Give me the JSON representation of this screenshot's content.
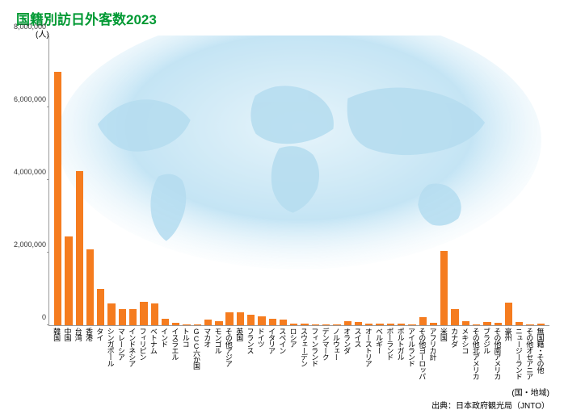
{
  "title": {
    "text": "国籍別訪日外客数2023",
    "color": "#009933",
    "fontsize": 17
  },
  "chart": {
    "type": "bar",
    "ylabel": "(人)",
    "xaxis_unit": "(国・地域)",
    "source": "出典：日本政府観光局（JNTO）",
    "bar_color": "#f57c1f",
    "axis_color": "#999999",
    "text_color": "#333333",
    "background_color": "#ffffff",
    "world_fill": "#7ec5e8",
    "ylim": [
      0,
      8000000
    ],
    "ytick_step": 2000000,
    "yticks": [
      {
        "value": 0,
        "label": "0"
      },
      {
        "value": 2000000,
        "label": "2,000,000"
      },
      {
        "value": 4000000,
        "label": "4,000,000"
      },
      {
        "value": 6000000,
        "label": "6,000,000"
      },
      {
        "value": 8000000,
        "label": "8,000,000"
      }
    ],
    "xlabel_fontsize": 9,
    "ytick_fontsize": 9,
    "bar_width": 0.7,
    "categories": [
      "韓国",
      "中国",
      "台湾",
      "香港",
      "タイ",
      "シンガポール",
      "マレーシア",
      "インドネシア",
      "フィリピン",
      "ベトナム",
      "インド",
      "イスラエル",
      "トルコ",
      "GCC六か国",
      "マカオ",
      "モンゴル",
      "その他アジア",
      "英国",
      "フランス",
      "ドイツ",
      "イタリア",
      "スペイン",
      "ロシア",
      "スウェーデン",
      "フィンランド",
      "デンマーク",
      "ノルウェー",
      "オランダ",
      "スイス",
      "オーストリア",
      "ベルギー",
      "ポーランド",
      "ポルトガル",
      "アイルランド",
      "その他ヨーロッパ",
      "アフリカ計",
      "米国",
      "カナダ",
      "メキシコ",
      "その他北アメリカ",
      "ブラジル",
      "その他南アメリカ",
      "豪州",
      "ニュージーランド",
      "その他オセアニア",
      "無国籍・その他"
    ],
    "values": [
      7000000,
      2450000,
      4250000,
      2100000,
      1000000,
      600000,
      450000,
      450000,
      650000,
      600000,
      180000,
      60000,
      30000,
      30000,
      150000,
      120000,
      350000,
      350000,
      300000,
      250000,
      180000,
      150000,
      50000,
      40000,
      30000,
      30000,
      30000,
      120000,
      90000,
      40000,
      40000,
      40000,
      40000,
      30000,
      220000,
      60000,
      2050000,
      450000,
      120000,
      30000,
      80000,
      60000,
      620000,
      90000,
      30000,
      40000
    ]
  }
}
